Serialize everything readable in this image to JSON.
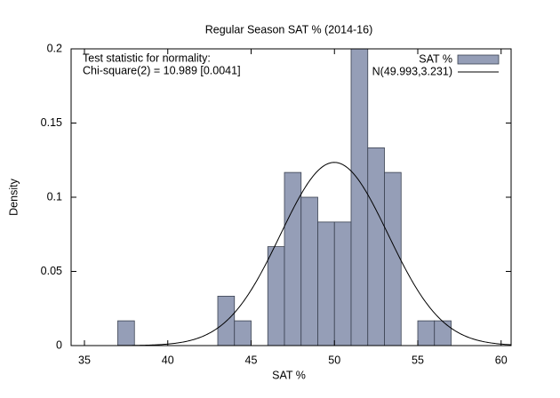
{
  "chart_data": {
    "type": "histogram",
    "title": "Regular Season SAT % (2014-16)",
    "x_label": "SAT %",
    "y_label": "Density",
    "annotation": [
      "Test statistic for normality:",
      "Chi-square(2) = 10.989 [0.0041]"
    ],
    "bins": [
      37,
      38,
      39,
      40,
      41,
      42,
      43,
      44,
      45,
      46,
      47,
      48,
      49,
      50,
      51,
      52,
      53,
      54,
      55,
      56,
      57
    ],
    "series": [
      {
        "name": "SAT %",
        "color": "#959eb7",
        "values": [
          0.0167,
          0,
          0,
          0,
          0,
          0,
          0.0333,
          0.0167,
          0,
          0.0667,
          0.1167,
          0.1,
          0.0833,
          0.0833,
          0.2,
          0.1333,
          0.1167,
          0,
          0.0167,
          0.0167
        ]
      }
    ],
    "normal": {
      "name": "N(49.993,3.231)",
      "mean": 49.993,
      "sd": 3.231,
      "color": "#000000"
    },
    "xlim": [
      34.2,
      60.6
    ],
    "ylim": [
      0,
      0.2
    ],
    "xticks": [
      35,
      40,
      45,
      50,
      55,
      60
    ],
    "yticks": [
      0,
      0.05,
      0.1,
      0.15,
      0.2
    ],
    "legend": "top-right"
  }
}
